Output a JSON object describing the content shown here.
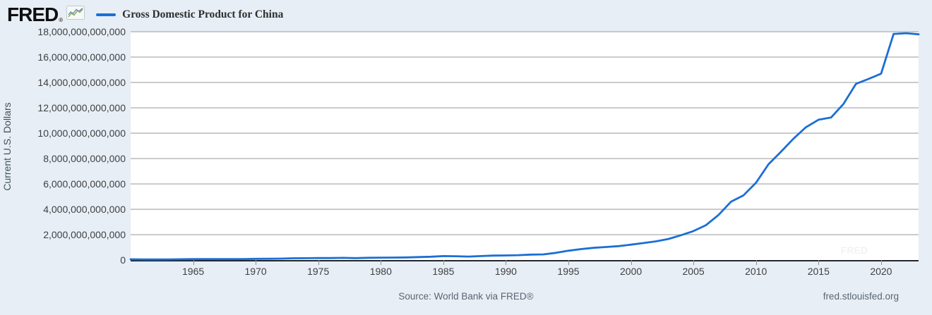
{
  "header": {
    "logo_text": "FRED",
    "logo_reg": "®",
    "series_label": "Gross Domestic Product for China"
  },
  "footer": {
    "source": "Source: World Bank via FRED®",
    "url": "fred.stlouisfed.org"
  },
  "colors": {
    "line": "#1b6fd4",
    "grid": "#bababa",
    "axis": "#22262b",
    "background": "#e7eef6",
    "plot_background": "#ffffff",
    "tick_label": "#404040",
    "footer_text": "#5a6672",
    "logo_icon_blue": "#6b8ca8",
    "logo_icon_green": "#86a85a"
  },
  "chart_data": {
    "type": "line",
    "title": "Gross Domestic Product for China",
    "xlabel": "",
    "ylabel": "Current U.S. Dollars",
    "units": "Current U.S. Dollars",
    "legend_position": "top-left",
    "grid": true,
    "x_range": [
      1960,
      2023
    ],
    "ylim": [
      0,
      18000000000000
    ],
    "y_tick_step": 2000000000000,
    "y_ticks": [
      0,
      2000000000000,
      4000000000000,
      6000000000000,
      8000000000000,
      10000000000000,
      12000000000000,
      14000000000000,
      16000000000000,
      18000000000000
    ],
    "x_ticks": [
      1965,
      1970,
      1975,
      1980,
      1985,
      1990,
      1995,
      2000,
      2005,
      2010,
      2015,
      2020
    ],
    "years": [
      1960,
      1961,
      1962,
      1963,
      1964,
      1965,
      1966,
      1967,
      1968,
      1969,
      1970,
      1971,
      1972,
      1973,
      1974,
      1975,
      1976,
      1977,
      1978,
      1979,
      1980,
      1981,
      1982,
      1983,
      1984,
      1985,
      1986,
      1987,
      1988,
      1989,
      1990,
      1991,
      1992,
      1993,
      1994,
      1995,
      1996,
      1997,
      1998,
      1999,
      2000,
      2001,
      2002,
      2003,
      2004,
      2005,
      2006,
      2007,
      2008,
      2009,
      2010,
      2011,
      2012,
      2013,
      2014,
      2015,
      2016,
      2017,
      2018,
      2019,
      2020,
      2021,
      2022,
      2023
    ],
    "values_billions": [
      59.7,
      50.1,
      47.2,
      50.7,
      59.7,
      70.4,
      76.7,
      72.9,
      70.8,
      79.7,
      92.6,
      99.8,
      113.7,
      138.5,
      144.2,
      163.4,
      153.9,
      174.9,
      149.5,
      178.3,
      191.1,
      195.9,
      205.1,
      230.7,
      260.0,
      309.5,
      300.8,
      273.0,
      312.4,
      347.8,
      360.9,
      383.4,
      426.9,
      444.7,
      564.3,
      734.5,
      863.7,
      961.6,
      1029.0,
      1094.0,
      1211.3,
      1339.4,
      1470.6,
      1660.3,
      1955.3,
      2286.0,
      2752.1,
      3550.3,
      4594.3,
      5101.7,
      6087.2,
      7551.5,
      8532.2,
      9570.4,
      10475.7,
      11061.6,
      11233.3,
      12310.4,
      13894.8,
      14280.0,
      14687.7,
      17820.5,
      17881.8,
      17794.8
    ]
  }
}
